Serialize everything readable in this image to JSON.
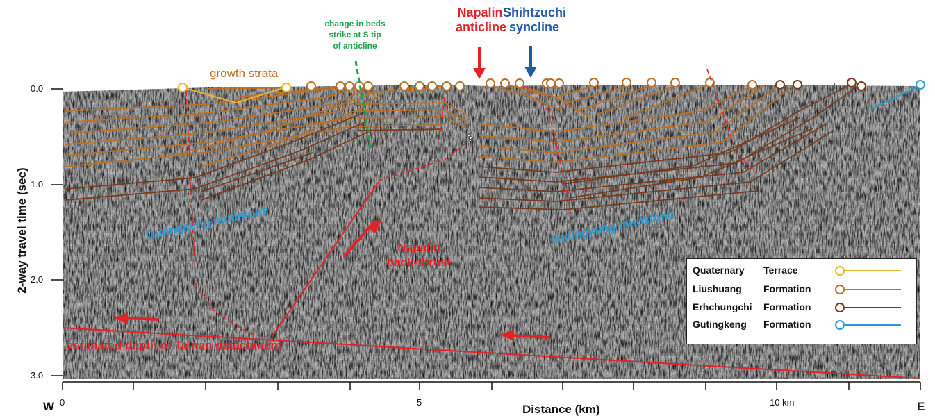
{
  "figure": {
    "labels": {
      "napalin_anticline": [
        "Napalin",
        "anticline"
      ],
      "shihtzuchi_syncline": [
        "Shihtzuchi",
        "syncline"
      ],
      "change_in_beds": [
        "change in beds",
        "strike at S tip",
        "of anticline"
      ],
      "growth_strata": "growth strata",
      "gutingkeng_west": "Gutingkeng  mudstone",
      "gutingkeng_east": "Gutingkeng  mudstone",
      "napalin_back_thrust": [
        "Napalin",
        "back-thrust"
      ],
      "detachment": "estimated depth of Tainan detachment",
      "question_mark": "?"
    },
    "legend": [
      {
        "name1": "Quaternary",
        "name2": "Terrace",
        "color": "#f0b42d"
      },
      {
        "name1": "Liushuang",
        "name2": "Formation",
        "color": "#b8712a"
      },
      {
        "name1": "Erhchungchi",
        "name2": "Formation",
        "color": "#7a3a1c"
      },
      {
        "name1": "Gutingkeng",
        "name2": "Formation",
        "color": "#2a9bd4"
      }
    ],
    "axes": {
      "y_label": "2-way travel time (sec)",
      "y_ticks": [
        "0.0",
        "1.0",
        "2.0",
        "3.0"
      ],
      "x_label": "Distance (km)",
      "x_ticks": [
        "0",
        "5",
        "10 km"
      ],
      "west": "W",
      "east": "E"
    },
    "colors": {
      "fault": "#e32227",
      "liushuang": "#b8712a",
      "erhchungchi": "#7a3a1c",
      "terrace": "#f0b42d",
      "gutingkeng": "#2a9bd4",
      "strike_change": "#1fa14a",
      "anticline_arrow": "#e32227",
      "syncline_arrow": "#1f5aa8"
    }
  }
}
